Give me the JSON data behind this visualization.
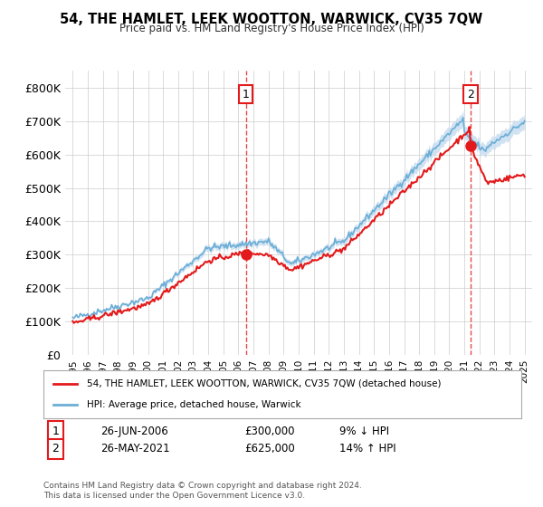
{
  "title": "54, THE HAMLET, LEEK WOOTTON, WARWICK, CV35 7QW",
  "subtitle": "Price paid vs. HM Land Registry's House Price Index (HPI)",
  "xlabel": "",
  "ylabel": "",
  "ylim": [
    0,
    850000
  ],
  "yticks": [
    0,
    100000,
    200000,
    300000,
    400000,
    500000,
    600000,
    700000,
    800000
  ],
  "ytick_labels": [
    "£0",
    "£100K",
    "£200K",
    "£300K",
    "£400K",
    "£500K",
    "£600K",
    "£700K",
    "£800K"
  ],
  "hpi_color": "#6baed6",
  "hpi_fill_color": "#c6dbef",
  "price_color": "#e31a1c",
  "marker1_date_idx": 11.5,
  "marker1_value": 300000,
  "marker2_date_idx": 26.4,
  "marker2_value": 625000,
  "legend_line1": "54, THE HAMLET, LEEK WOOTTON, WARWICK, CV35 7QW (detached house)",
  "legend_line2": "HPI: Average price, detached house, Warwick",
  "table_row1_num": "1",
  "table_row1_date": "26-JUN-2006",
  "table_row1_price": "£300,000",
  "table_row1_hpi": "9% ↓ HPI",
  "table_row2_num": "2",
  "table_row2_date": "26-MAY-2021",
  "table_row2_price": "£625,000",
  "table_row2_hpi": "14% ↑ HPI",
  "footer": "Contains HM Land Registry data © Crown copyright and database right 2024.\nThis data is licensed under the Open Government Licence v3.0.",
  "background_color": "#ffffff",
  "grid_color": "#cccccc"
}
